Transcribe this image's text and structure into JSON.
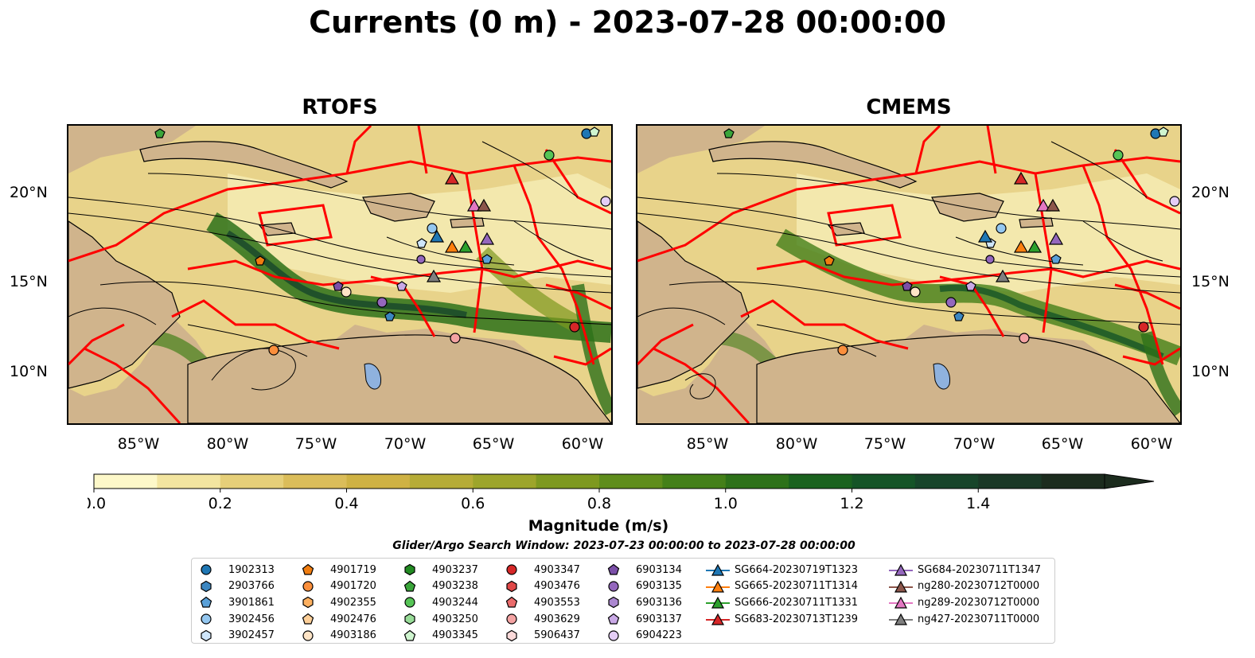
{
  "title": "Currents (0 m) - 2023-07-28 00:00:00",
  "panels": [
    {
      "title": "RTOFS"
    },
    {
      "title": "CMEMS"
    }
  ],
  "axes": {
    "x_ticks": [
      "85°W",
      "80°W",
      "75°W",
      "70°W",
      "65°W",
      "60°W"
    ],
    "y_ticks": [
      "20°N",
      "15°N",
      "10°N"
    ]
  },
  "colorbar": {
    "label": "Magnitude (m/s)",
    "ticks": [
      "0.0",
      "0.2",
      "0.4",
      "0.6",
      "0.8",
      "1.0",
      "1.2",
      "1.4"
    ],
    "range": [
      0,
      1.6
    ],
    "extend": "max",
    "colors": [
      "#fdf8c9",
      "#f3e5a0",
      "#e6cf79",
      "#dbbd5a",
      "#cfb244",
      "#b6ac37",
      "#9da52b",
      "#7e9920",
      "#5f8d1c",
      "#448019",
      "#2d7119",
      "#1a621e",
      "#155427",
      "#17452a",
      "#1a3826",
      "#1c2c1e"
    ]
  },
  "search_window": "Glider/Argo Search Window: 2023-07-23 00:00:00 to 2023-07-28 00:00:00",
  "legend": {
    "columns": [
      [
        {
          "label": "1902313",
          "marker": "circle",
          "color": "#1f77b4"
        },
        {
          "label": "2903766",
          "marker": "hexagon",
          "color": "#3b86c1"
        },
        {
          "label": "3901861",
          "marker": "pentagon",
          "color": "#5aa0d8"
        },
        {
          "label": "3902456",
          "marker": "circle",
          "color": "#94c7f0"
        },
        {
          "label": "3902457",
          "marker": "hexagon",
          "color": "#cfe6fb"
        }
      ],
      [
        {
          "label": "4901719",
          "marker": "pentagon",
          "color": "#f07d10"
        },
        {
          "label": "4901720",
          "marker": "circle",
          "color": "#fb8f3c"
        },
        {
          "label": "4902355",
          "marker": "hexagon",
          "color": "#fdb060"
        },
        {
          "label": "4902476",
          "marker": "pentagon",
          "color": "#fdcf98"
        },
        {
          "label": "4903186",
          "marker": "circle",
          "color": "#fee4c6"
        }
      ],
      [
        {
          "label": "4903237",
          "marker": "hexagon",
          "color": "#228b22"
        },
        {
          "label": "4903238",
          "marker": "pentagon",
          "color": "#3aa53a"
        },
        {
          "label": "4903244",
          "marker": "circle",
          "color": "#56c456"
        },
        {
          "label": "4903250",
          "marker": "hexagon",
          "color": "#98dc98"
        },
        {
          "label": "4903345",
          "marker": "pentagon",
          "color": "#cff5cf"
        }
      ],
      [
        {
          "label": "4903347",
          "marker": "circle",
          "color": "#d62728"
        },
        {
          "label": "4903476",
          "marker": "hexagon",
          "color": "#e04848"
        },
        {
          "label": "4903553",
          "marker": "pentagon",
          "color": "#ea6b6b"
        },
        {
          "label": "4903629",
          "marker": "circle",
          "color": "#f4a3a3"
        },
        {
          "label": "5906437",
          "marker": "hexagon",
          "color": "#fcdada"
        }
      ],
      [
        {
          "label": "6903134",
          "marker": "pentagon",
          "color": "#7b4fa8"
        },
        {
          "label": "6903135",
          "marker": "circle",
          "color": "#9467bd"
        },
        {
          "label": "6903136",
          "marker": "hexagon",
          "color": "#ab87d0"
        },
        {
          "label": "6903137",
          "marker": "pentagon",
          "color": "#c9a9e6"
        },
        {
          "label": "6904223",
          "marker": "circle",
          "color": "#e4cdf6"
        }
      ],
      [
        {
          "label": "SG664-20230719T1323",
          "marker": "triangle",
          "color": "#1f77b4"
        },
        {
          "label": "SG665-20230711T1314",
          "marker": "triangle",
          "color": "#ff7f0e"
        },
        {
          "label": "SG666-20230711T1331",
          "marker": "triangle",
          "color": "#2ca02c"
        },
        {
          "label": "SG683-20230713T1239",
          "marker": "triangle",
          "color": "#d62728"
        }
      ],
      [
        {
          "label": "SG684-20230711T1347",
          "marker": "triangle",
          "color": "#9467bd"
        },
        {
          "label": "ng280-20230712T0000",
          "marker": "triangle",
          "color": "#8c564b"
        },
        {
          "label": "ng289-20230712T0000",
          "marker": "triangle",
          "color": "#e377c2"
        },
        {
          "label": "ng427-20230711T0000",
          "marker": "triangle",
          "color": "#7f7f7f"
        }
      ]
    ]
  }
}
